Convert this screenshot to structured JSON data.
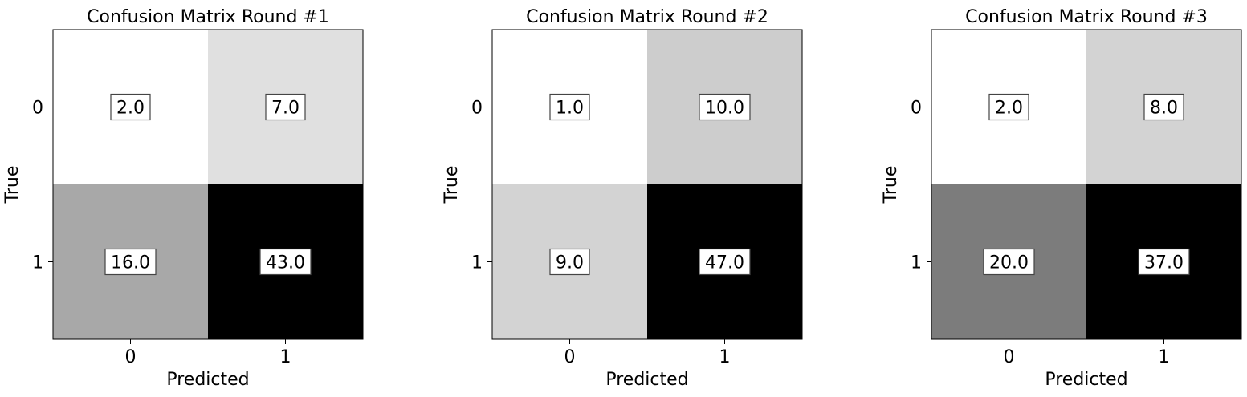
{
  "chart_data": [
    {
      "type": "heatmap",
      "title": "Confusion Matrix Round #1",
      "xlabel": "Predicted",
      "ylabel": "True",
      "x_categories": [
        "0",
        "1"
      ],
      "y_categories": [
        "0",
        "1"
      ],
      "values": [
        [
          2.0,
          7.0
        ],
        [
          16.0,
          43.0
        ]
      ],
      "value_labels": [
        [
          "2.0",
          "7.0"
        ],
        [
          "16.0",
          "43.0"
        ]
      ],
      "colormap": "grayscale-reversed",
      "color_low": "#ffffff",
      "color_high": "#000000"
    },
    {
      "type": "heatmap",
      "title": "Confusion Matrix Round #2",
      "xlabel": "Predicted",
      "ylabel": "True",
      "x_categories": [
        "0",
        "1"
      ],
      "y_categories": [
        "0",
        "1"
      ],
      "values": [
        [
          1.0,
          10.0
        ],
        [
          9.0,
          47.0
        ]
      ],
      "value_labels": [
        [
          "1.0",
          "10.0"
        ],
        [
          "9.0",
          "47.0"
        ]
      ],
      "colormap": "grayscale-reversed",
      "color_low": "#ffffff",
      "color_high": "#000000"
    },
    {
      "type": "heatmap",
      "title": "Confusion Matrix Round #3",
      "xlabel": "Predicted",
      "ylabel": "True",
      "x_categories": [
        "0",
        "1"
      ],
      "y_categories": [
        "0",
        "1"
      ],
      "values": [
        [
          2.0,
          8.0
        ],
        [
          20.0,
          37.0
        ]
      ],
      "value_labels": [
        [
          "2.0",
          "8.0"
        ],
        [
          "20.0",
          "37.0"
        ]
      ],
      "colormap": "grayscale-reversed",
      "color_low": "#ffffff",
      "color_high": "#000000"
    }
  ]
}
